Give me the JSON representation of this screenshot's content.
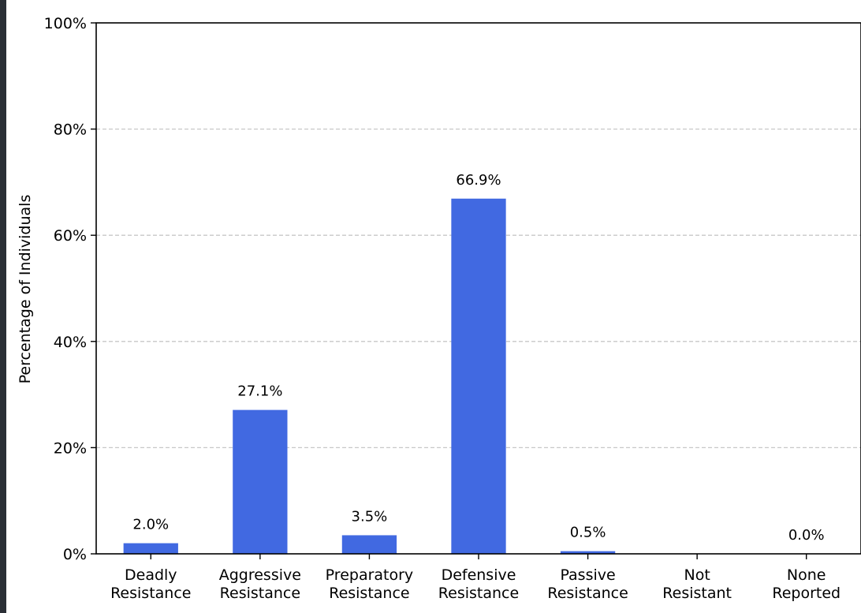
{
  "chart_data": {
    "type": "bar",
    "title": "",
    "xlabel": "",
    "ylabel": "Percentage of Individuals",
    "ylim": [
      0,
      100
    ],
    "yticks": [
      0,
      20,
      40,
      60,
      80,
      100
    ],
    "ytick_labels": [
      "0%",
      "20%",
      "40%",
      "60%",
      "80%",
      "100%"
    ],
    "grid": "horizontal dashed at 20, 40, 60, 80",
    "categories": [
      [
        "Deadly",
        "Resistance"
      ],
      [
        "Aggressive",
        "Resistance"
      ],
      [
        "Preparatory",
        "Resistance"
      ],
      [
        "Defensive",
        "Resistance"
      ],
      [
        "Passive",
        "Resistance"
      ],
      [
        "Not",
        "Resistant"
      ],
      [
        "None",
        "Reported"
      ]
    ],
    "values": [
      2.0,
      27.1,
      3.5,
      66.9,
      0.5,
      0.0,
      0.0
    ],
    "value_labels": [
      "2.0%",
      "27.1%",
      "3.5%",
      "66.9%",
      "0.5%",
      "",
      "0.0%"
    ],
    "bar_color": "#4169e1"
  }
}
